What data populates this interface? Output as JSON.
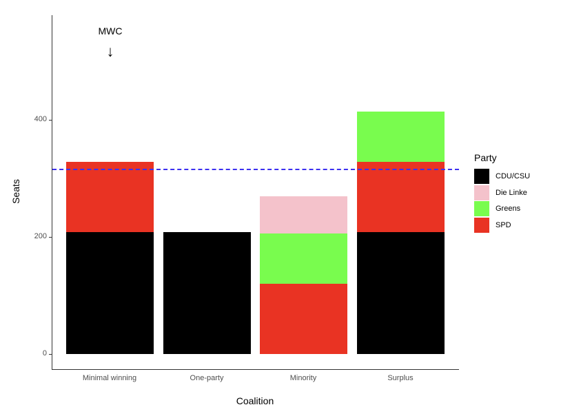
{
  "chart_data": {
    "type": "bar",
    "stacked": true,
    "title": "",
    "xlabel": "Coalition",
    "ylabel": "Seats",
    "ylim": [
      0,
      560
    ],
    "yticks": [
      0,
      200,
      400
    ],
    "categories": [
      "Minimal winning",
      "One-party",
      "Minority",
      "Surplus"
    ],
    "series": [
      {
        "name": "CDU/CSU",
        "color": "#000000",
        "values": [
          208,
          208,
          0,
          208
        ]
      },
      {
        "name": "SPD",
        "color": "#e93323",
        "values": [
          120,
          0,
          120,
          120
        ]
      },
      {
        "name": "Greens",
        "color": "#79fc4e",
        "values": [
          0,
          0,
          86,
          86
        ]
      },
      {
        "name": "Die Linke",
        "color": "#f4c2cb",
        "values": [
          0,
          0,
          63,
          0
        ]
      }
    ],
    "reference_line": {
      "y": 316,
      "style": "dashed",
      "color": "#3b2ff0"
    },
    "annotation": {
      "text": "MWC",
      "arrow": "↓",
      "category": "Minimal winning"
    },
    "legend": {
      "title": "Party",
      "position": "right",
      "entries": [
        "CDU/CSU",
        "Die Linke",
        "Greens",
        "SPD"
      ]
    },
    "grid": false
  },
  "legend": {
    "title": "Party",
    "items": [
      {
        "label": "CDU/CSU",
        "color": "#000000"
      },
      {
        "label": "Die Linke",
        "color": "#f4c2cb"
      },
      {
        "label": "Greens",
        "color": "#79fc4e"
      },
      {
        "label": "SPD",
        "color": "#e93323"
      }
    ]
  },
  "axis": {
    "xlabel": "Coalition",
    "ylabel": "Seats",
    "yticks": [
      "0",
      "200",
      "400"
    ],
    "xticks": [
      "Minimal winning",
      "One-party",
      "Minority",
      "Surplus"
    ]
  },
  "annotation": {
    "text": "MWC",
    "arrow": "↓"
  }
}
